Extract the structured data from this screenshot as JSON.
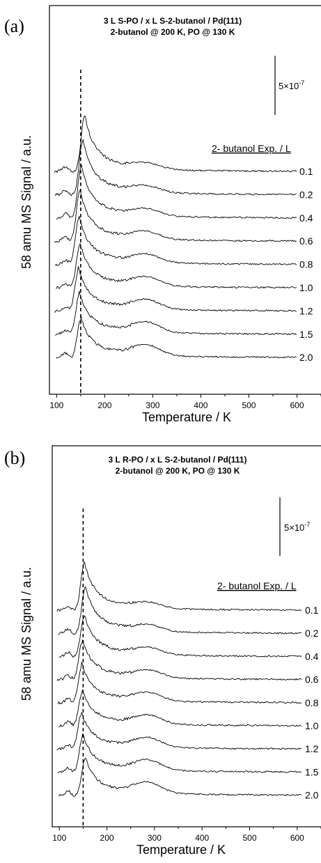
{
  "chart_data": [
    {
      "type": "line",
      "panel_label": "(a)",
      "title_line1": "3 L S-PO / x L S-2-butanol / Pd(111)",
      "title_line2": "2-butanol @ 200 K, PO @ 130 K",
      "xlabel": "Temperature / K",
      "ylabel": "58 amu MS Signal / a.u.",
      "xlim": [
        85,
        650
      ],
      "xticks": [
        100,
        200,
        300,
        400,
        500,
        600
      ],
      "scale_bar": "5×10",
      "scale_bar_exp": "-7",
      "legend_title": "2- butanol Exp. / L",
      "reference_line_x": 150,
      "series": [
        {
          "name": "0.1",
          "peak_T": 158,
          "peak_height": 78
        },
        {
          "name": "0.2",
          "peak_T": 154,
          "peak_height": 76
        },
        {
          "name": "0.4",
          "peak_T": 151,
          "peak_height": 72
        },
        {
          "name": "0.6",
          "peak_T": 148,
          "peak_height": 70
        },
        {
          "name": "0.8",
          "peak_T": 146,
          "peak_height": 66
        },
        {
          "name": "1.0",
          "peak_T": 148,
          "peak_height": 60
        },
        {
          "name": "1.2",
          "peak_T": 145,
          "peak_height": 58
        },
        {
          "name": "1.5",
          "peak_T": 147,
          "peak_height": 56
        },
        {
          "name": "2.0",
          "peak_T": 150,
          "peak_height": 54
        }
      ]
    },
    {
      "type": "line",
      "panel_label": "(b)",
      "title_line1": "3 L R-PO / x L S-2-butanol / Pd(111)",
      "title_line2": "2-butanol @ 200 K, PO @ 130 K",
      "xlabel": "Temperature / K",
      "ylabel": "58 amu MS Signal / a.u.",
      "xlim": [
        85,
        650
      ],
      "xticks": [
        100,
        200,
        300,
        400,
        500,
        600
      ],
      "scale_bar": "5×10",
      "scale_bar_exp": "-7",
      "legend_title": "2- butanol Exp. / L",
      "reference_line_x": 150,
      "series": [
        {
          "name": "0.1",
          "peak_T": 152,
          "peak_height": 66
        },
        {
          "name": "0.2",
          "peak_T": 154,
          "peak_height": 64
        },
        {
          "name": "0.4",
          "peak_T": 152,
          "peak_height": 56
        },
        {
          "name": "0.6",
          "peak_T": 148,
          "peak_height": 54
        },
        {
          "name": "0.8",
          "peak_T": 147,
          "peak_height": 52
        },
        {
          "name": "1.0",
          "peak_T": 148,
          "peak_height": 48
        },
        {
          "name": "1.2",
          "peak_T": 146,
          "peak_height": 48
        },
        {
          "name": "1.5",
          "peak_T": 149,
          "peak_height": 50
        },
        {
          "name": "2.0",
          "peak_T": 154,
          "peak_height": 50
        }
      ]
    }
  ]
}
